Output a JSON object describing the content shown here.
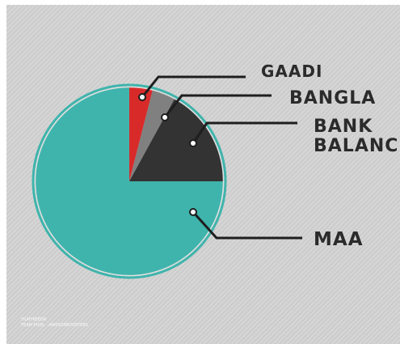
{
  "chart_data": {
    "type": "pie",
    "title": "",
    "start_angle_deg": 90,
    "direction": "clockwise",
    "slices": [
      {
        "label": "GAADI",
        "lines": [
          "GAADI"
        ],
        "value": 4,
        "color": "#d92a2a",
        "explode": 0
      },
      {
        "label": "BANGLA",
        "lines": [
          "BANGLA"
        ],
        "value": 4,
        "color": "#808080",
        "explode": 0
      },
      {
        "label": "BANK BALANCE",
        "lines": [
          "BANK",
          "BALANCE"
        ],
        "value": 17,
        "color": "#333333",
        "explode": 0
      },
      {
        "label": "MAA",
        "lines": [
          "MAA"
        ],
        "value": 75,
        "color": "#3fb4ac",
        "explode": 0
      }
    ],
    "ring_color": "#3fb4ac",
    "background_color": "#d3d3d3",
    "leader_color": "#1e1e1e"
  },
  "footer": {
    "line1": "FILMYKEEDA",
    "line2": "TEAM PIXEL · AWESOMEPOSTERS"
  }
}
